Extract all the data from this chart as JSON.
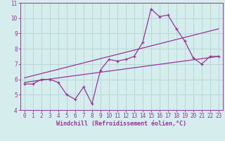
{
  "xlabel": "Windchill (Refroidissement éolien,°C)",
  "xlim": [
    -0.5,
    23.5
  ],
  "ylim": [
    4,
    11
  ],
  "xticks": [
    0,
    1,
    2,
    3,
    4,
    5,
    6,
    7,
    8,
    9,
    10,
    11,
    12,
    13,
    14,
    15,
    16,
    17,
    18,
    19,
    20,
    21,
    22,
    23
  ],
  "yticks": [
    4,
    5,
    6,
    7,
    8,
    9,
    10,
    11
  ],
  "bg_color": "#d5eeed",
  "line_color": "#993399",
  "grid_color": "#b8d8d8",
  "data_line": {
    "x": [
      0,
      1,
      2,
      3,
      4,
      5,
      6,
      7,
      8,
      9,
      10,
      11,
      12,
      13,
      14,
      15,
      16,
      17,
      18,
      19,
      20,
      21,
      22,
      23
    ],
    "y": [
      5.7,
      5.7,
      6.0,
      6.0,
      5.8,
      5.0,
      4.7,
      5.5,
      4.4,
      6.6,
      7.3,
      7.2,
      7.3,
      7.5,
      8.4,
      10.6,
      10.1,
      10.2,
      9.3,
      8.5,
      7.4,
      7.0,
      7.5,
      7.5
    ]
  },
  "upper_line": {
    "x": [
      0,
      23
    ],
    "y": [
      6.1,
      9.3
    ]
  },
  "lower_line": {
    "x": [
      0,
      23
    ],
    "y": [
      5.8,
      7.5
    ]
  }
}
